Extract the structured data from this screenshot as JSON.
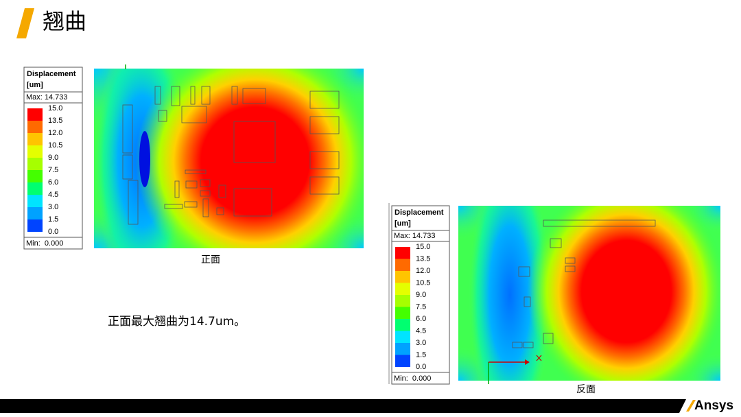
{
  "header": {
    "title": "翘曲"
  },
  "front": {
    "legend": {
      "title": "Displacement",
      "unit": "[um]",
      "max": "Max: 14.733",
      "levels": [
        "15.0",
        "13.5",
        "12.0",
        "10.5",
        "9.0",
        "7.5",
        "6.0",
        "4.5",
        "3.0",
        "1.5",
        "0.0"
      ],
      "colors": [
        "#ff0000",
        "#ff6a00",
        "#ffc400",
        "#e4ff00",
        "#a6ff00",
        "#44ff00",
        "#00ff70",
        "#00e4ff",
        "#00a2ff",
        "#0044ff"
      ],
      "min": "Min:  0.000"
    },
    "caption": "正面"
  },
  "summary": "正面最大翘曲为14.7um。",
  "back": {
    "legend": {
      "title": "Displacement",
      "unit": "[um]",
      "max": "Max: 14.733",
      "levels": [
        "15.0",
        "13.5",
        "12.0",
        "10.5",
        "9.0",
        "7.5",
        "6.0",
        "4.5",
        "3.0",
        "1.5",
        "0.0"
      ],
      "colors": [
        "#ff0000",
        "#ff6a00",
        "#ffc400",
        "#e4ff00",
        "#a6ff00",
        "#44ff00",
        "#00ff70",
        "#00e4ff",
        "#00a2ff",
        "#0044ff"
      ],
      "min": "Min:  0.000"
    },
    "caption": "反面"
  },
  "logo": "Ansys"
}
